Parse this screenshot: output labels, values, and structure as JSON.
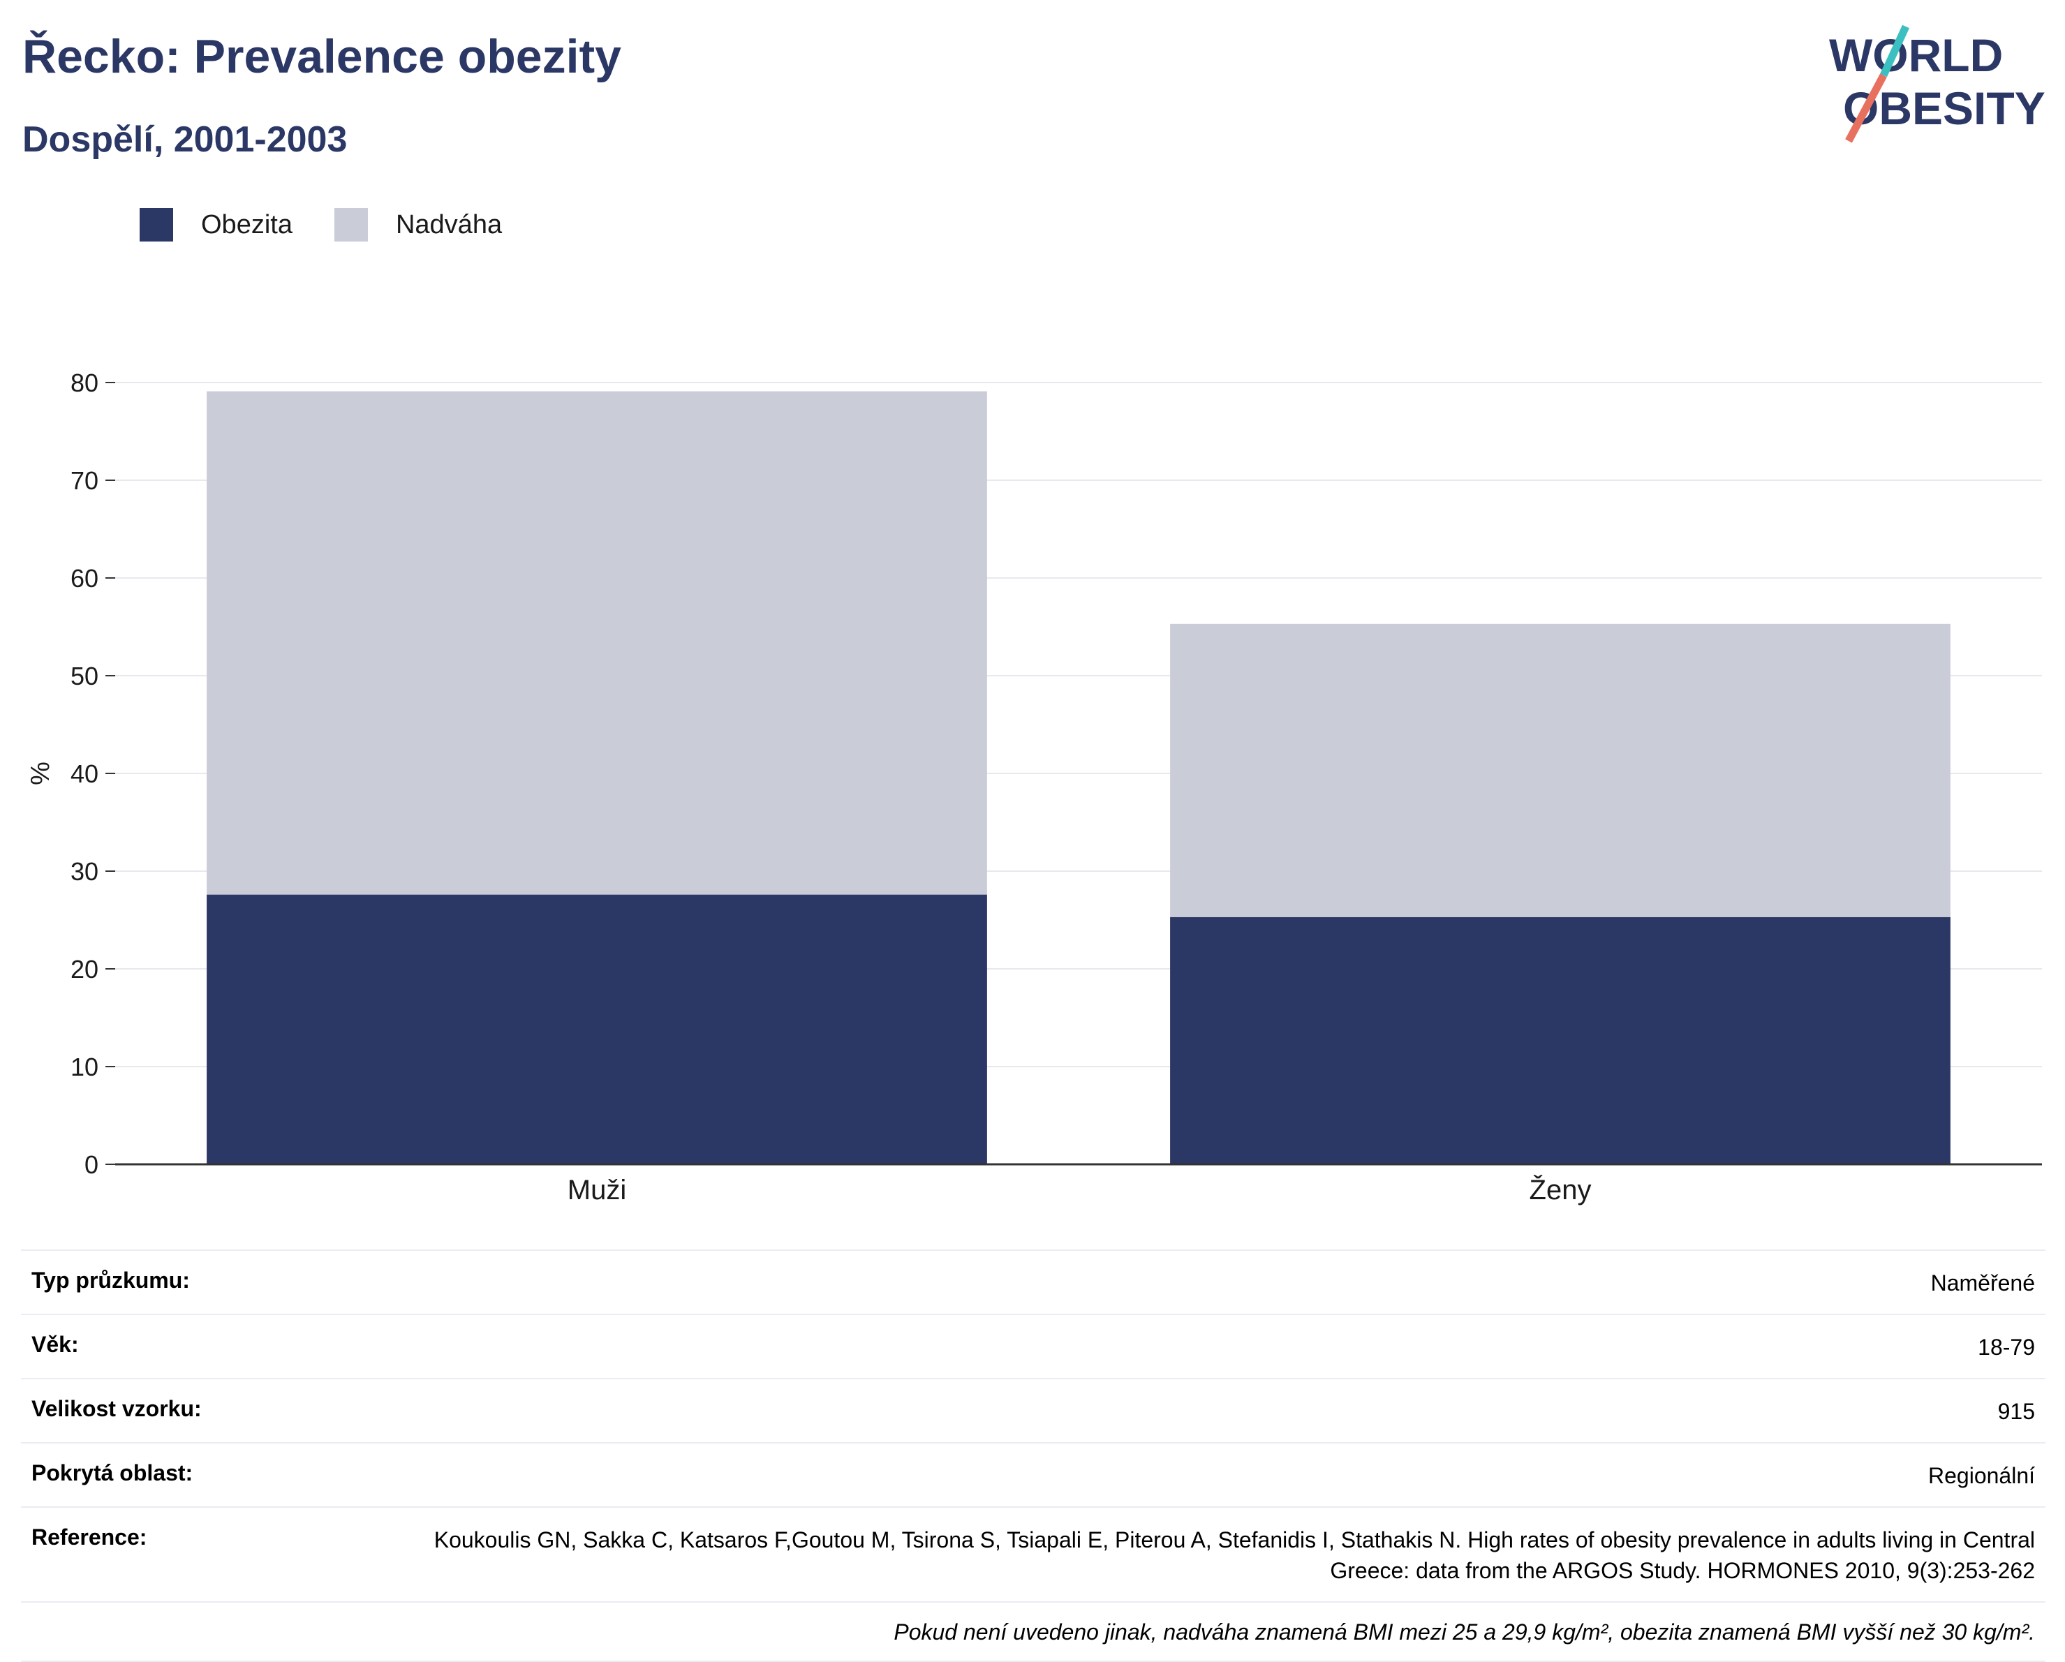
{
  "header": {
    "title": "Řecko: Prevalence obezity",
    "subtitle": "Dospělí, 2001-2003"
  },
  "logo": {
    "line1": "WORLD",
    "line2": "OBESITY",
    "icon": "world-obesity-logo"
  },
  "colors": {
    "obesity": "#2b3765",
    "overweight": "#caccd7",
    "text_dark": "#2b3765",
    "logo_teal": "#3bbfc1",
    "logo_coral": "#e8705e"
  },
  "legend": [
    {
      "label": "Obezita",
      "color": "#2b3765"
    },
    {
      "label": "Nadváha",
      "color": "#caccd7"
    }
  ],
  "chart_data": {
    "type": "bar",
    "stacked": true,
    "categories": [
      "Muži",
      "Ženy"
    ],
    "series": [
      {
        "name": "Obezita",
        "values": [
          27.6,
          25.3
        ]
      },
      {
        "name": "Nadváha",
        "values": [
          51.5,
          30.0
        ]
      }
    ],
    "ylabel": "%",
    "ylim": [
      0,
      80
    ],
    "yticks": [
      0,
      10,
      20,
      30,
      40,
      50,
      60,
      70,
      80
    ],
    "grid": true,
    "legend_position": "top-left"
  },
  "metadata": {
    "rows": [
      {
        "label": "Typ průzkumu:",
        "value": "Naměřené"
      },
      {
        "label": "Věk:",
        "value": "18-79"
      },
      {
        "label": "Velikost vzorku:",
        "value": "915"
      },
      {
        "label": "Pokrytá oblast:",
        "value": "Regionální"
      },
      {
        "label": "Reference:",
        "value": "Koukoulis GN, Sakka C, Katsaros F,Goutou M, Tsirona S, Tsiapali E, Piterou A, Stefanidis I, Stathakis N. High rates of obesity prevalence in adults living in Central Greece: data from the ARGOS Study. HORMONES 2010, 9(3):253-262"
      }
    ],
    "footnote": "Pokud není uvedeno jinak, nadváha znamená BMI mezi 25 a 29,9 kg/m², obezita znamená BMI vyšší než 30 kg/m²."
  }
}
